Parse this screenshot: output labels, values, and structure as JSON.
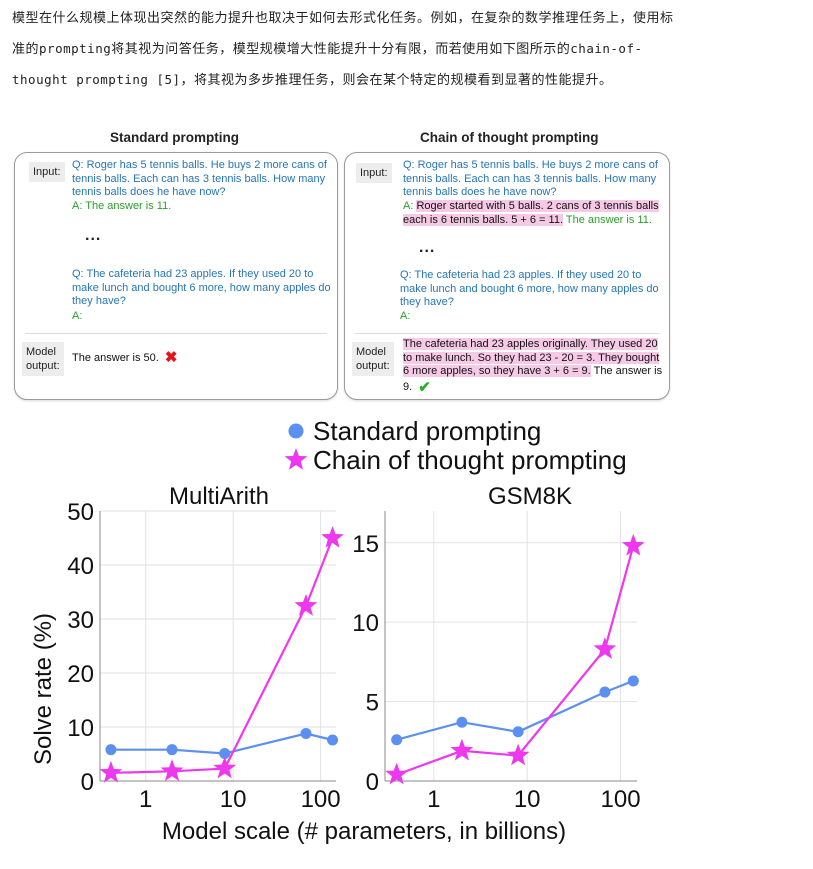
{
  "paragraph": {
    "p1": "模型在什么规模上体现出突然的能力提升也取决于如何去形式化任务。例如，在复杂的数学推理任务上，使用标准的",
    "p2": "prompting",
    "p3": "将其视为问答任务，模型规模增大性能提升十分有限，而若使用如下图所示的",
    "p4": "chain-of-thought prompting [5]",
    "p5": "，将其视为多步推理任务，则会在某个特定的规模看到显著的性能提升。"
  },
  "panels": {
    "standard": {
      "title": "Standard prompting",
      "input_label": "Input:",
      "q1": "Q: Roger has 5 tennis balls. He buys 2 more cans of tennis balls. Each can has 3 tennis balls. How many tennis balls does he have now?",
      "a1": "A: The answer is 11.",
      "dots": "...",
      "q2": "Q: The cafeteria had 23 apples. If they used 20 to make lunch and bought 6 more, how many apples do they have?",
      "a2": "A:",
      "output_label_1": "Model",
      "output_label_2": "output:",
      "output": "The answer is 50.",
      "output_mark": "✖"
    },
    "cot": {
      "title": "Chain of thought prompting",
      "input_label": "Input:",
      "q1": "Q: Roger has 5 tennis balls. He buys 2 more cans of tennis balls. Each can has 3 tennis balls. How many tennis balls does he have now?",
      "a1_prefix": "A:",
      "a1_reasoning": "Roger started with 5 balls. 2 cans of 3 tennis balls each is 6 tennis balls. 5 + 6 = 11.",
      "a1_answer": "The answer is 11.",
      "dots": "...",
      "q2": "Q: The cafeteria had 23 apples. If they used 20 to make lunch and bought 6 more, how many apples do they have?",
      "a2": "A:",
      "output_label_1": "Model",
      "output_label_2": "output:",
      "output_reasoning": "The cafeteria had 23 apples originally. They used 20 to make lunch. So they had 23 - 20 = 3. They bought 6 more apples, so they have 3 + 6 = 9.",
      "output_answer": "The answer is 9.",
      "output_mark": "✔"
    }
  },
  "colors": {
    "standard": "#5b8ff0",
    "cot": "#ee38ee",
    "question_text": "#2676b5",
    "answer_text": "#2a9d2a",
    "highlight": "#f6c9e6",
    "wrong": "#e8101a",
    "right": "#27b12b"
  },
  "chart_data": [
    {
      "type": "line",
      "title": "MultiArith",
      "xscale": "log",
      "xlim": [
        0.3,
        150
      ],
      "xticks": [
        1,
        10,
        100
      ],
      "ylim": [
        0,
        50
      ],
      "yticks": [
        0,
        10,
        20,
        30,
        40,
        50
      ],
      "ylabel": "Solve rate (%)",
      "xlabel": "Model scale (# parameters, in billions)",
      "series": [
        {
          "name": "Standard prompting",
          "marker": "circle",
          "x": [
            0.4,
            2,
            8,
            68,
            137
          ],
          "y": [
            5.8,
            5.8,
            5.1,
            8.8,
            7.6
          ]
        },
        {
          "name": "Chain of thought prompting",
          "marker": "star",
          "x": [
            0.4,
            2,
            8,
            68,
            137
          ],
          "y": [
            1.5,
            1.8,
            2.3,
            32.4,
            45.0
          ]
        }
      ]
    },
    {
      "type": "line",
      "title": "GSM8K",
      "xscale": "log",
      "xlim": [
        0.3,
        150
      ],
      "xticks": [
        1,
        10,
        100
      ],
      "ylim": [
        0,
        17
      ],
      "yticks": [
        0,
        5,
        10,
        15
      ],
      "series": [
        {
          "name": "Standard prompting",
          "marker": "circle",
          "x": [
            0.4,
            2,
            8,
            68,
            137
          ],
          "y": [
            2.6,
            3.7,
            3.1,
            5.6,
            6.3
          ]
        },
        {
          "name": "Chain of thought prompting",
          "marker": "star",
          "x": [
            0.4,
            2,
            8,
            68,
            137
          ],
          "y": [
            0.4,
            1.9,
            1.6,
            8.3,
            14.8
          ]
        }
      ]
    }
  ]
}
